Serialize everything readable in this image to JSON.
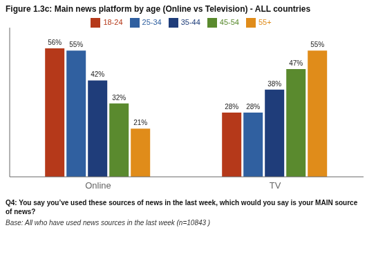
{
  "chart_data": {
    "type": "bar",
    "title": "Figure 1.3c: Main news platform by age (Online vs Television) - ALL countries",
    "categories": [
      "Online",
      "TV"
    ],
    "series": [
      {
        "name": "18-24",
        "color": "#b5391a",
        "values": [
          56,
          28
        ],
        "value_labels": [
          "56%",
          "28%"
        ]
      },
      {
        "name": "25-34",
        "color": "#3060a0",
        "values": [
          55,
          28
        ],
        "value_labels": [
          "55%",
          "28%"
        ]
      },
      {
        "name": "35-44",
        "color": "#1f3d7a",
        "values": [
          42,
          38
        ],
        "value_labels": [
          "42%",
          "38%"
        ]
      },
      {
        "name": "45-54",
        "color": "#5a8a2e",
        "values": [
          32,
          47
        ],
        "value_labels": [
          "32%",
          "47%"
        ]
      },
      {
        "name": "55+",
        "color": "#e08c1a",
        "values": [
          21,
          55
        ],
        "value_labels": [
          "21%",
          "55%"
        ]
      }
    ],
    "ylim": [
      0,
      65
    ],
    "grid": false,
    "legend": "top",
    "data_labels": true,
    "tick_labels": "x",
    "annotations": [
      "Q4: You say you’ve used these sources of news in the last week, which would you say is your MAIN source\nof news?",
      " Base: All who have used news sources in the last week (n=10843 )"
    ]
  }
}
